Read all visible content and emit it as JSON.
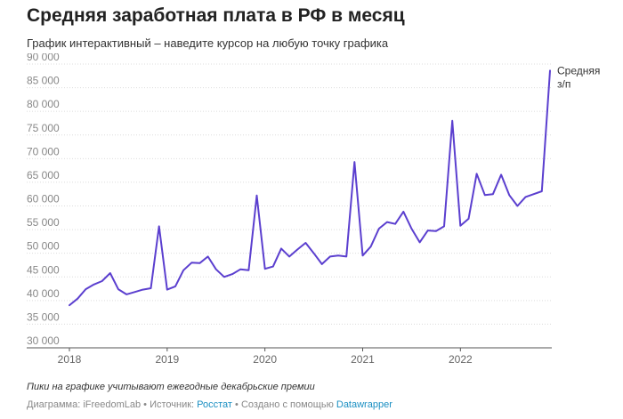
{
  "header": {
    "title": "Средняя заработная плата в РФ в месяц",
    "subtitle": "График интерактивный – наведите курсор на любую точку графика"
  },
  "footer": {
    "note": "Пики на графике учитывают ежегодные декабрьские премии",
    "diagram_label": "Диаграмма: iFreedomLab • Источник: ",
    "source_link": "Росстат",
    "made_with": " • Создано с помощью ",
    "tool_link": "Datawrapper"
  },
  "chart_data": {
    "type": "line",
    "title": "Средняя заработная плата в РФ в месяц",
    "xlabel": "",
    "ylabel": "",
    "ylim": [
      30000,
      90000
    ],
    "yticks": [
      30000,
      35000,
      40000,
      45000,
      50000,
      55000,
      60000,
      65000,
      70000,
      75000,
      80000,
      85000,
      90000
    ],
    "ytick_labels": [
      "30 000",
      "35 000",
      "40 000",
      "45 000",
      "50 000",
      "55 000",
      "60 000",
      "65 000",
      "70 000",
      "75 000",
      "80 000",
      "85 000",
      "90 000"
    ],
    "xticks": [
      "2018",
      "2019",
      "2020",
      "2021",
      "2022"
    ],
    "x_start": "2018-01",
    "x_end": "2022-12",
    "color": "#5b3fcf",
    "grid": true,
    "series": [
      {
        "name": "Средняя з/п",
        "label_lines": [
          "Средняя",
          "з/п"
        ],
        "values": [
          39000,
          40400,
          42400,
          43400,
          44100,
          45800,
          42400,
          41300,
          41800,
          42300,
          42600,
          55700,
          42300,
          43000,
          46400,
          48000,
          47900,
          49300,
          46600,
          45000,
          45600,
          46600,
          46400,
          62200,
          46700,
          47200,
          51000,
          49300,
          50800,
          52200,
          50000,
          47700,
          49300,
          49500,
          49300,
          69300,
          49500,
          51400,
          55200,
          56600,
          56200,
          58800,
          55200,
          52300,
          54800,
          54700,
          55700,
          78000,
          55800,
          57300,
          66800,
          62300,
          62500,
          66600,
          62300,
          60000,
          61900,
          62500,
          63100,
          88600
        ]
      }
    ]
  }
}
